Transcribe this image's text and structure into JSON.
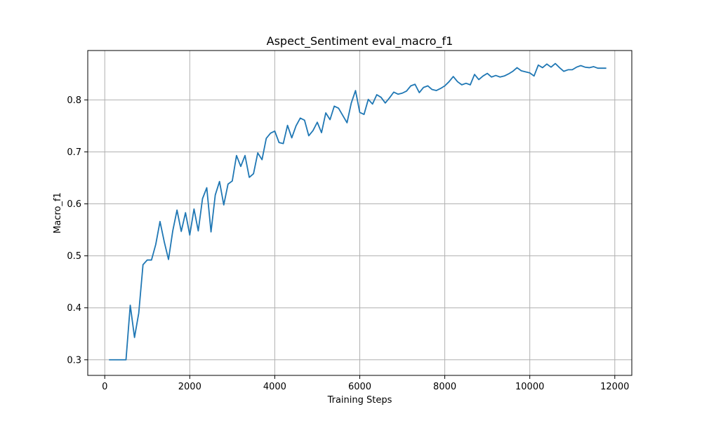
{
  "chart_data": {
    "type": "line",
    "title": "Aspect_Sentiment eval_macro_f1",
    "xlabel": "Training Steps",
    "ylabel": "Macro_f1",
    "xlim": [
      -400,
      12400
    ],
    "ylim": [
      0.27,
      0.895
    ],
    "xticks": [
      0,
      2000,
      4000,
      6000,
      8000,
      10000,
      12000
    ],
    "xtick_labels": [
      "0",
      "2000",
      "4000",
      "6000",
      "8000",
      "10000",
      "12000"
    ],
    "yticks": [
      0.3,
      0.4,
      0.5,
      0.6,
      0.7,
      0.8
    ],
    "ytick_labels": [
      "0.3",
      "0.4",
      "0.5",
      "0.6",
      "0.7",
      "0.8"
    ],
    "grid": true,
    "series": [
      {
        "color": "#1f77b4",
        "x": [
          100,
          200,
          300,
          400,
          500,
          600,
          700,
          800,
          900,
          1000,
          1100,
          1200,
          1300,
          1400,
          1500,
          1600,
          1700,
          1800,
          1900,
          2000,
          2100,
          2200,
          2300,
          2400,
          2500,
          2600,
          2700,
          2800,
          2900,
          3000,
          3100,
          3200,
          3300,
          3400,
          3500,
          3600,
          3700,
          3800,
          3900,
          4000,
          4100,
          4200,
          4300,
          4400,
          4500,
          4600,
          4700,
          4800,
          4900,
          5000,
          5100,
          5200,
          5300,
          5400,
          5500,
          5600,
          5700,
          5800,
          5900,
          6000,
          6100,
          6200,
          6300,
          6400,
          6500,
          6600,
          6700,
          6800,
          6900,
          7000,
          7100,
          7200,
          7300,
          7400,
          7500,
          7600,
          7700,
          7800,
          7900,
          8000,
          8100,
          8200,
          8300,
          8400,
          8500,
          8600,
          8700,
          8800,
          8900,
          9000,
          9100,
          9200,
          9300,
          9400,
          9500,
          9600,
          9700,
          9800,
          9900,
          10000,
          10100,
          10200,
          10300,
          10400,
          10500,
          10600,
          10700,
          10800,
          10900,
          11000,
          11100,
          11200,
          11300,
          11400,
          11500,
          11600,
          11700,
          11800
        ],
        "y": [
          0.3,
          0.3,
          0.3,
          0.3,
          0.3,
          0.405,
          0.343,
          0.39,
          0.483,
          0.492,
          0.492,
          0.522,
          0.566,
          0.527,
          0.493,
          0.548,
          0.588,
          0.547,
          0.583,
          0.54,
          0.59,
          0.548,
          0.61,
          0.631,
          0.546,
          0.617,
          0.643,
          0.598,
          0.638,
          0.644,
          0.693,
          0.672,
          0.693,
          0.651,
          0.658,
          0.698,
          0.685,
          0.726,
          0.736,
          0.74,
          0.718,
          0.716,
          0.751,
          0.727,
          0.75,
          0.765,
          0.761,
          0.731,
          0.741,
          0.757,
          0.737,
          0.775,
          0.762,
          0.788,
          0.784,
          0.77,
          0.756,
          0.794,
          0.818,
          0.776,
          0.772,
          0.801,
          0.792,
          0.81,
          0.805,
          0.794,
          0.804,
          0.815,
          0.811,
          0.813,
          0.817,
          0.827,
          0.83,
          0.814,
          0.824,
          0.827,
          0.82,
          0.818,
          0.822,
          0.827,
          0.835,
          0.845,
          0.835,
          0.829,
          0.832,
          0.829,
          0.849,
          0.839,
          0.846,
          0.851,
          0.844,
          0.847,
          0.844,
          0.846,
          0.85,
          0.855,
          0.862,
          0.856,
          0.854,
          0.852,
          0.846,
          0.867,
          0.862,
          0.869,
          0.863,
          0.87,
          0.862,
          0.855,
          0.858,
          0.858,
          0.863,
          0.866,
          0.863,
          0.862,
          0.864,
          0.861,
          0.861,
          0.861
        ]
      }
    ]
  }
}
